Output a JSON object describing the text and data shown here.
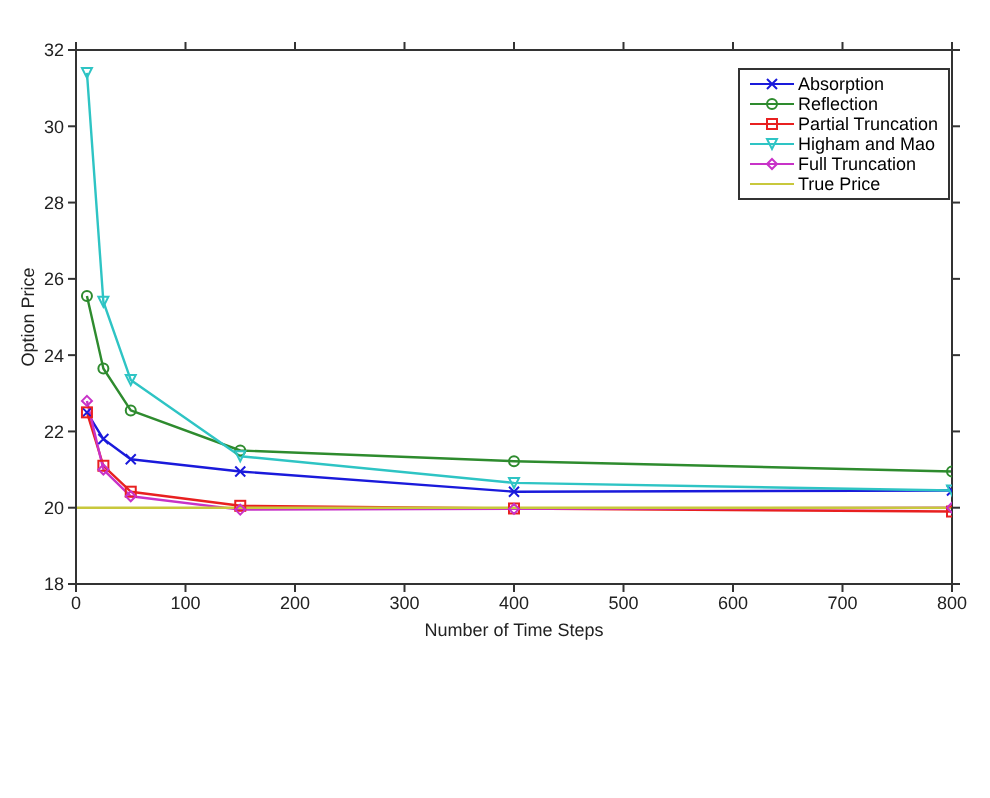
{
  "chart_data": {
    "type": "line",
    "xlabel": "Number of Time Steps",
    "ylabel": "Option Price",
    "x": [
      10,
      25,
      50,
      150,
      400,
      800
    ],
    "series": [
      {
        "name": "Absorption",
        "color": "#1a1adb",
        "marker": "cross",
        "values": [
          22.5,
          21.8,
          21.27,
          20.95,
          20.42,
          20.45
        ]
      },
      {
        "name": "Reflection",
        "color": "#2e8b2e",
        "marker": "circle",
        "values": [
          25.55,
          23.65,
          22.55,
          21.5,
          21.22,
          20.95
        ]
      },
      {
        "name": "Partial Truncation",
        "color": "#e82020",
        "marker": "square",
        "values": [
          22.5,
          21.1,
          20.42,
          20.05,
          19.98,
          19.9
        ]
      },
      {
        "name": "Higham and Mao",
        "color": "#2ec4c4",
        "marker": "triangle",
        "values": [
          31.4,
          25.4,
          23.35,
          21.35,
          20.65,
          20.45
        ]
      },
      {
        "name": "Full Truncation",
        "color": "#c832c8",
        "marker": "diamond",
        "values": [
          22.8,
          21.0,
          20.3,
          19.95,
          19.97,
          20.0
        ]
      },
      {
        "name": "True Price",
        "color": "#c8c83c",
        "marker": "none",
        "x": [
          0,
          800
        ],
        "values": [
          20,
          20
        ]
      }
    ],
    "xlim": [
      0,
      800
    ],
    "xticks": [
      0,
      100,
      200,
      300,
      400,
      500,
      600,
      700,
      800
    ],
    "ylim": [
      18,
      32
    ],
    "yticks": [
      18,
      20,
      22,
      24,
      26,
      28,
      30,
      32
    ],
    "grid": false,
    "legend": "top right",
    "line_style": "solid"
  }
}
